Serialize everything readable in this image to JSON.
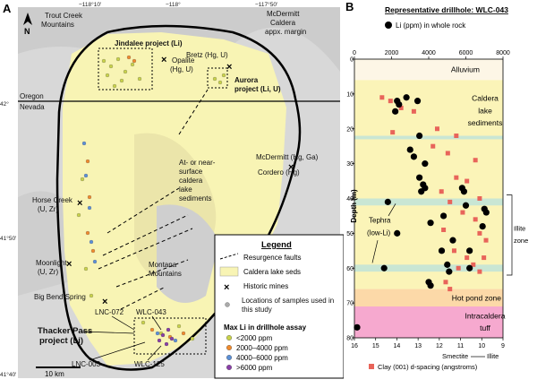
{
  "panel_a": {
    "letter": "A",
    "north": "N",
    "lon_ticks": [
      "−118°10'",
      "−118°",
      "−117°50'"
    ],
    "lat_ticks": [
      "42°",
      "41°50'",
      "41°40'"
    ],
    "labels": {
      "trout_creek": [
        "Trout Creek",
        "Mountains"
      ],
      "jindalee": "Jindalee project (Li)",
      "opalite": [
        "Opalite",
        "(Hg, U)"
      ],
      "bretz": "Bretz (Hg, U)",
      "aurora": [
        "Aurora",
        "project (Li, U)"
      ],
      "mcdermitt_margin": [
        "McDermitt",
        "Caldera",
        "appx. margin"
      ],
      "oregon": "Oregon",
      "nevada": "Nevada",
      "mcdermitt_mine": "McDermitt (Hg, Ga)",
      "cordero": "Cordero (Hg)",
      "horse_creek": [
        "Horse Creek",
        "(U, Zr)"
      ],
      "lake_seds": [
        "At- or near-",
        "surface",
        "caldera",
        "lake",
        "sediments"
      ],
      "moonlight": [
        "Moonlight",
        "(U, Zr)"
      ],
      "montana": [
        "Montana",
        "Mountains"
      ],
      "big_bend": "Big Bend Spring",
      "lnc072": "LNC-072",
      "wlc043": "WLC-043",
      "thacker": [
        "Thacker Pass",
        "project (Li)"
      ],
      "lnc003": "LNC-003",
      "wlc125": "WLC-125",
      "scale": "10 km"
    },
    "legend": {
      "title": "Legend",
      "items": [
        "Resurgence faults",
        "Caldera lake seds",
        "Historic mines",
        "Locations of samples used in this study"
      ],
      "assay_title": "Max Li in drillhole assay",
      "classes": [
        {
          "label": "<2000 ppm",
          "color": "#c9d24a"
        },
        {
          "label": "2000–4000 ppm",
          "color": "#f08a2c"
        },
        {
          "label": "4000–6000 ppm",
          "color": "#5b8fd6"
        },
        {
          "label": ">6000 ppm",
          "color": "#8a3fa8"
        }
      ]
    }
  },
  "panel_b": {
    "letter": "B",
    "title": "Representative drillhole: WLC-043",
    "legend_li": "Li (ppm) in whole rock",
    "legend_clay": "Clay (001) d-spacing (angstroms)",
    "top_ticks": [
      "0",
      "2000",
      "4000",
      "6000",
      "8000"
    ],
    "bottom_ticks": [
      "16",
      "15",
      "14",
      "13",
      "12",
      "11",
      "10",
      "9"
    ],
    "y_ticks": [
      "0",
      "10",
      "20",
      "30",
      "40",
      "50",
      "60",
      "70",
      "80"
    ],
    "ylabel": "Depth (m)",
    "smectite": "Smectite",
    "illite": "Illite",
    "illite_zone": [
      "Illite",
      "zone"
    ],
    "zones": {
      "alluvium": "Alluvium",
      "caldera": [
        "Caldera",
        "lake",
        "sediments"
      ],
      "hot_pond": "Hot pond zone",
      "intracaldera": [
        "Intracaldera",
        "tuff"
      ]
    },
    "tephra": [
      "Tephra",
      "(low-Li)"
    ]
  },
  "chart_data": {
    "type": "scatter",
    "title": "Representative drillhole: WLC-043",
    "ylabel": "Depth (m)",
    "ylim": [
      0,
      80
    ],
    "series": [
      {
        "name": "Li (ppm) in whole rock",
        "axis": "top",
        "xlim": [
          0,
          8000
        ],
        "points": [
          [
            2800,
            11
          ],
          [
            2300,
            12
          ],
          [
            2400,
            13
          ],
          [
            2200,
            15
          ],
          [
            3400,
            12
          ],
          [
            3500,
            22
          ],
          [
            3000,
            26
          ],
          [
            3200,
            28
          ],
          [
            3800,
            30
          ],
          [
            3500,
            34
          ],
          [
            3700,
            36
          ],
          [
            3600,
            38
          ],
          [
            3800,
            37
          ],
          [
            5800,
            37
          ],
          [
            5900,
            38
          ],
          [
            6000,
            42
          ],
          [
            7000,
            43
          ],
          [
            7100,
            44
          ],
          [
            6900,
            48
          ],
          [
            1800,
            41
          ],
          [
            4100,
            47
          ],
          [
            4800,
            45
          ],
          [
            2300,
            50
          ],
          [
            5300,
            52
          ],
          [
            4700,
            55
          ],
          [
            6200,
            55
          ],
          [
            5000,
            59
          ],
          [
            5100,
            61
          ],
          [
            6200,
            60
          ],
          [
            4000,
            64
          ],
          [
            4100,
            65
          ],
          [
            1600,
            60
          ],
          [
            0,
            77
          ]
        ]
      },
      {
        "name": "Clay (001) d-spacing (angstroms)",
        "axis": "bottom",
        "xlim": [
          16,
          9
        ],
        "points": [
          [
            14.7,
            11
          ],
          [
            14.3,
            12
          ],
          [
            13.8,
            14
          ],
          [
            13.2,
            15
          ],
          [
            14.2,
            21
          ],
          [
            12.1,
            20
          ],
          [
            11.2,
            22
          ],
          [
            12.3,
            25
          ],
          [
            11.6,
            27
          ],
          [
            10.3,
            29
          ],
          [
            11.2,
            34
          ],
          [
            10.7,
            35
          ],
          [
            11.9,
            38
          ],
          [
            10.1,
            40
          ],
          [
            11.5,
            41
          ],
          [
            10.9,
            44
          ],
          [
            10.3,
            46
          ],
          [
            11.8,
            49
          ],
          [
            10.1,
            50
          ],
          [
            9.8,
            52
          ],
          [
            11.3,
            55
          ],
          [
            10.7,
            57
          ],
          [
            9.9,
            57
          ],
          [
            10.4,
            59
          ],
          [
            11.1,
            60
          ],
          [
            10.1,
            61
          ],
          [
            11.7,
            64
          ],
          [
            11.5,
            66
          ]
        ]
      }
    ],
    "zones": [
      {
        "name": "Alluvium",
        "from": 0,
        "to": 6,
        "color": "#fdf6e6"
      },
      {
        "name": "Caldera lake sediments",
        "from": 6,
        "to": 66,
        "color": "#fbf4b8"
      },
      {
        "name": "Hot pond zone",
        "from": 66,
        "to": 71,
        "color": "#fcd9a8"
      },
      {
        "name": "Intracaldera tuff",
        "from": 71,
        "to": 80,
        "color": "#f6a9cf"
      }
    ],
    "bands": [
      [
        22,
        23
      ],
      [
        40,
        42
      ],
      [
        59,
        61
      ]
    ],
    "illite_zone": [
      39,
      62
    ]
  }
}
